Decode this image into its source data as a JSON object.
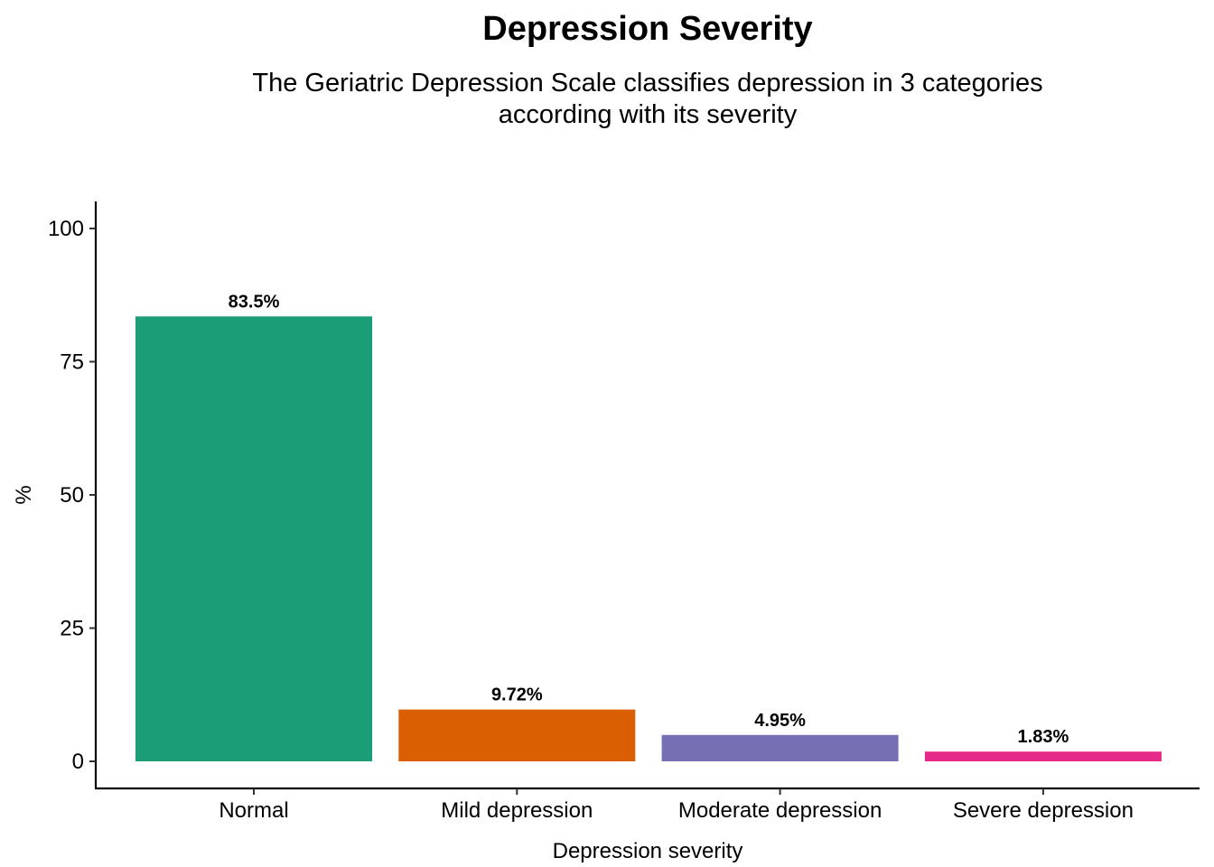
{
  "chart_data": {
    "type": "bar",
    "title": "Depression Severity",
    "subtitle_lines": [
      "The Geriatric Depression Scale classifies depression in 3 categories",
      "according with its severity"
    ],
    "xlabel": "Depression severity",
    "ylabel": "%",
    "categories": [
      "Normal",
      "Mild depression",
      "Moderate depression",
      "Severe depression"
    ],
    "values": [
      83.5,
      9.72,
      4.95,
      1.83
    ],
    "data_labels": [
      "83.5%",
      "9.72%",
      "4.95%",
      "1.83%"
    ],
    "colors": [
      "#1b9e77",
      "#d95f02",
      "#7570b3",
      "#e7298a"
    ],
    "yticks": [
      0,
      25,
      50,
      75,
      100
    ],
    "ylim": [
      -4.8,
      105.2
    ],
    "grid": false,
    "legend": "none"
  }
}
